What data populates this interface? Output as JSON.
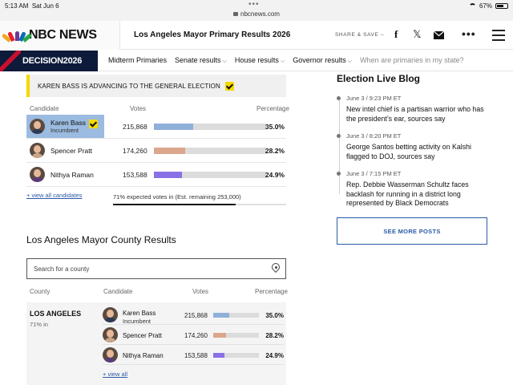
{
  "status_bar": {
    "time": "5:13 AM",
    "date": "Sat Jun 6",
    "url": "nbcnews.com",
    "battery": "67%",
    "battery_fraction": 0.67
  },
  "header": {
    "logo_text": "NBC NEWS",
    "title": "Los Angeles Mayor Primary Results 2026",
    "share_label": "SHARE & SAVE",
    "share_caret": "–"
  },
  "nav": {
    "decision_label": "DECISION2026",
    "items": [
      {
        "label": "Midterm Primaries"
      },
      {
        "label": "Senate results"
      },
      {
        "label": "House results"
      },
      {
        "label": "Governor results"
      },
      {
        "label": "When are primaries in my state?"
      }
    ]
  },
  "race": {
    "banner": "KAREN BASS IS ADVANCING TO THE GENERAL ELECTION",
    "headers": {
      "candidate": "Candidate",
      "votes": "Votes",
      "percentage": "Percentage"
    },
    "candidates": [
      {
        "name": "Karen Bass",
        "sub": "Incumbent",
        "votes": "215,868",
        "pct_label": "35.0%",
        "pct": 35.0,
        "color": "#8fb0d9",
        "leader": true
      },
      {
        "name": "Spencer Pratt",
        "sub": "",
        "votes": "174,260",
        "pct_label": "28.2%",
        "pct": 28.2,
        "color": "#dba68c",
        "leader": false
      },
      {
        "name": "Nithya Raman",
        "sub": "",
        "votes": "153,588",
        "pct_label": "24.9%",
        "pct": 24.9,
        "color": "#8a70e6",
        "leader": false
      }
    ],
    "view_all": "+ view all candidates",
    "expected": "71% expected votes in (Est. remaining 253,000)",
    "expected_fraction": 0.71
  },
  "county": {
    "title": "Los Angeles Mayor County Results",
    "search_placeholder": "Search for a county",
    "headers": {
      "county": "County",
      "candidate": "Candidate",
      "votes": "Votes",
      "percentage": "Percentage"
    },
    "name": "LOS ANGELES",
    "reporting": "71% in",
    "view_all": "+ view all"
  },
  "blog": {
    "title": "Election Live Blog",
    "posts": [
      {
        "time": "June 3 / 9:23 PM ET",
        "headline": "New intel chief is a partisan warrior who has the president’s ear, sources say"
      },
      {
        "time": "June 3 / 8:20 PM ET",
        "headline": "George Santos betting activity on Kalshi flagged to DOJ, sources say"
      },
      {
        "time": "June 3 / 7:15 PM ET",
        "headline": "Rep. Debbie Wasserman Schultz faces backlash for running in a district long represented by Black Democrats"
      }
    ],
    "see_more": "SEE MORE POSTS"
  }
}
